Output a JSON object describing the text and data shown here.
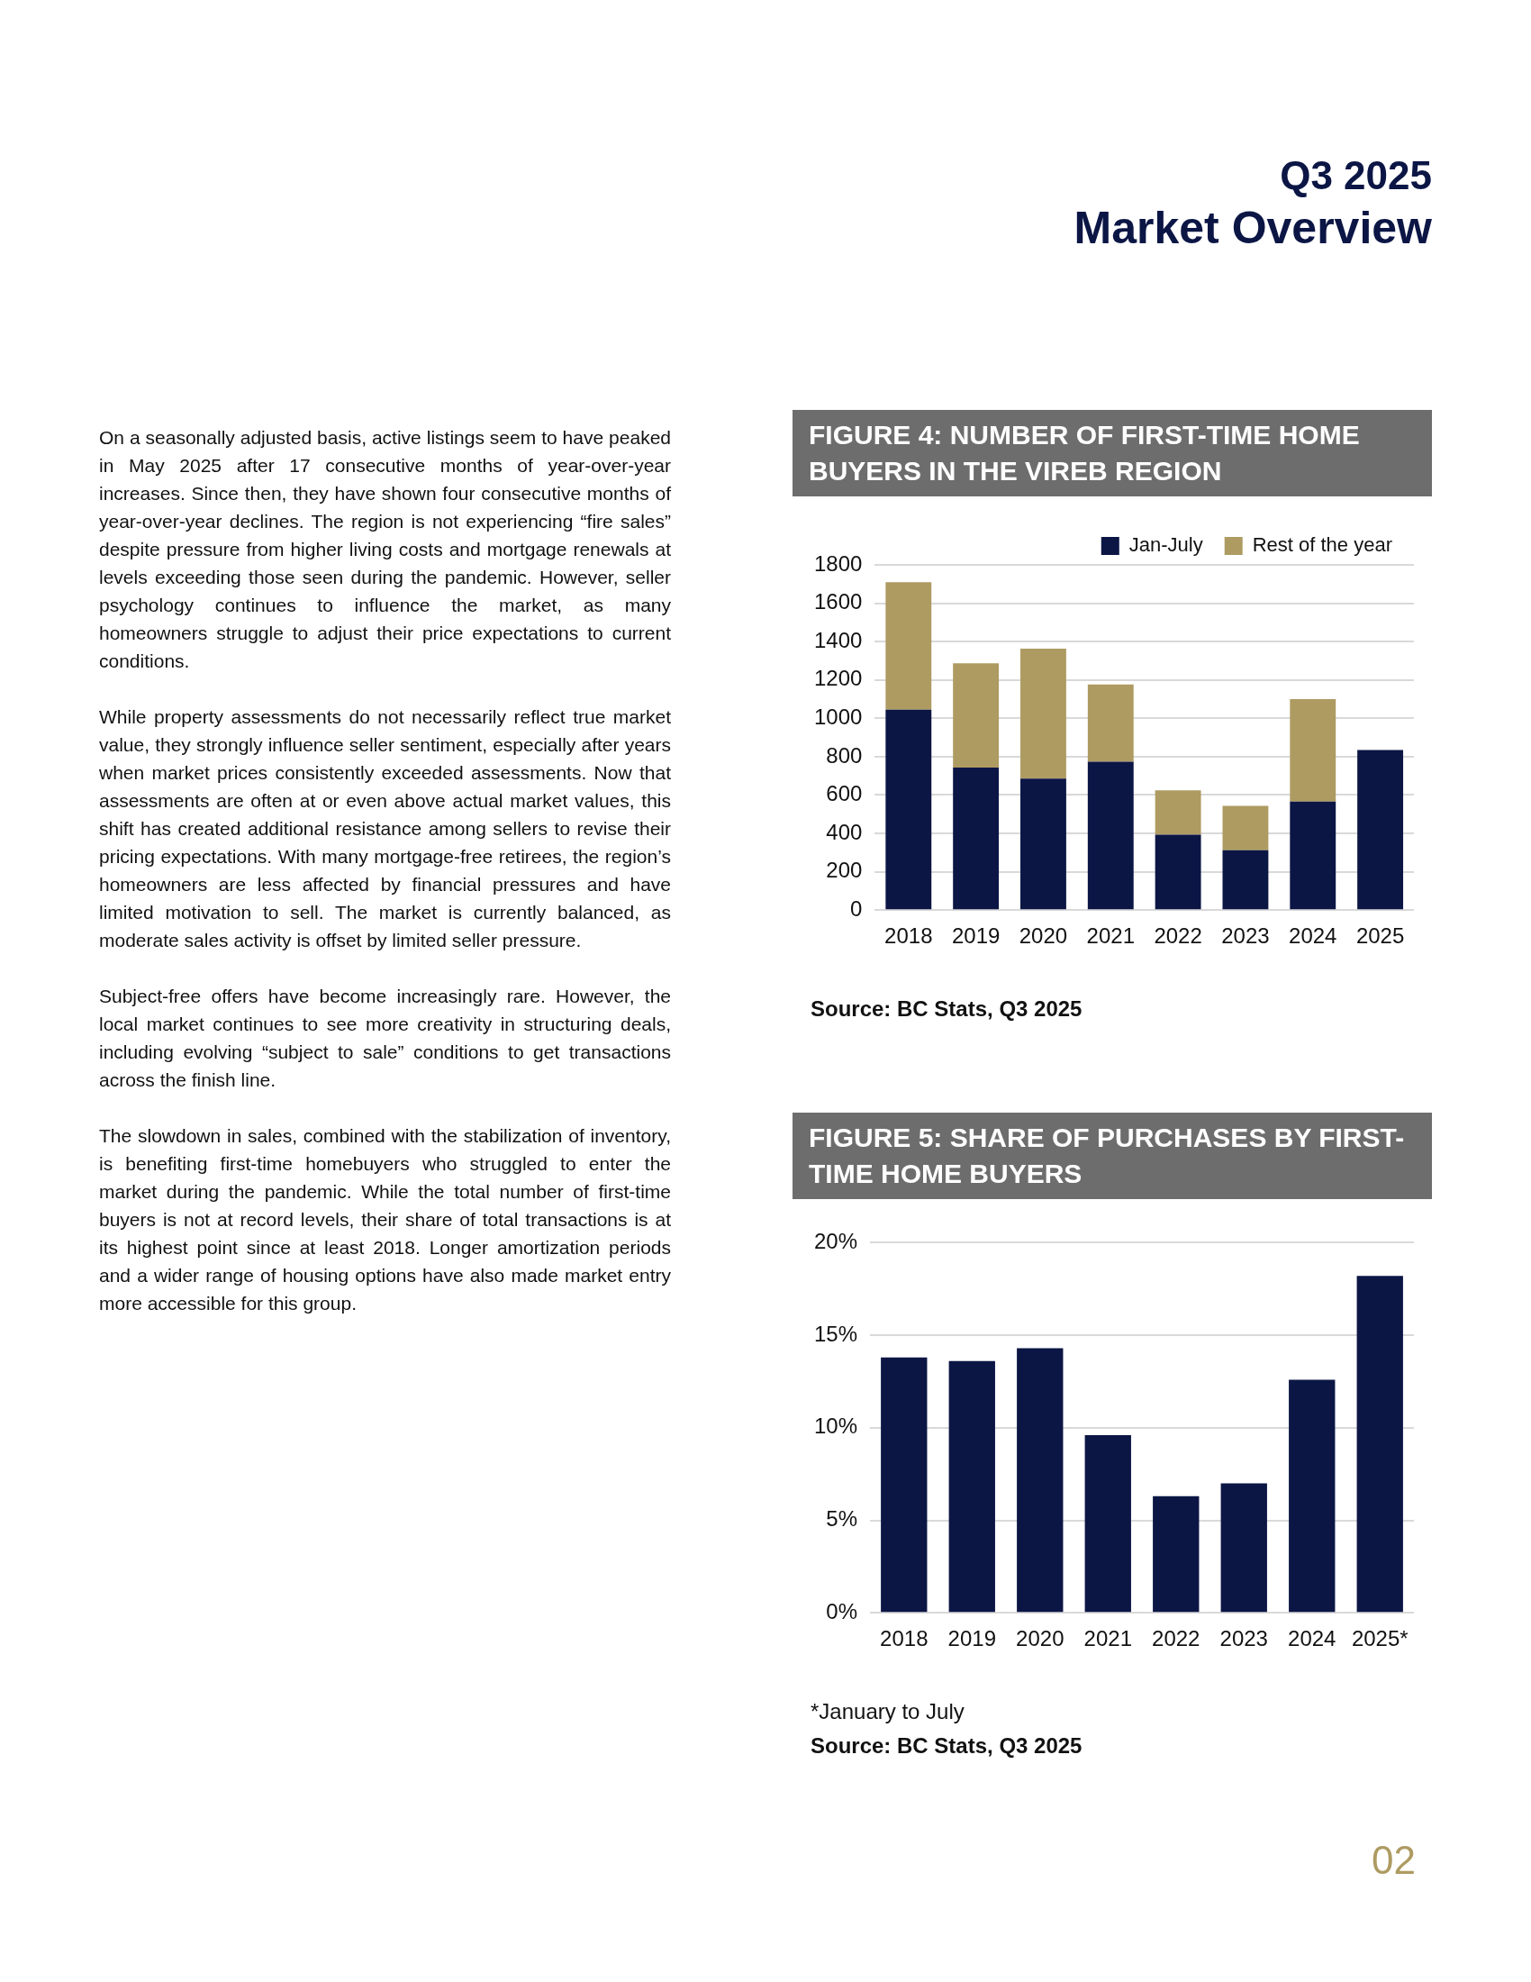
{
  "chart_data": [
    {
      "type": "other",
      "title": "Q3 2025",
      "subtitle": "Market Overview",
      "annotations": [
        "On a seasonally adjusted basis, active listings seem to have peaked in May 2025 after 17 consecutive months of year-over-year increases. Since then, they have shown four consecutive months of year-over-year declines. The region is not experiencing “fire sales” despite pressure from higher living costs and mortgage renewals at levels exceeding those seen during the pandemic. However, seller psychology continues to influence the market, as many homeowners struggle to adjust their price expectations to current conditions.",
        "While property assessments do not necessarily reflect true market value, they strongly influence seller sentiment, especially after years when market prices consistently exceeded assessments. Now that assessments are often at or even above actual market values, this shift has created additional resistance among sellers to revise their pricing expectations. With many mortgage-free retirees, the region’s homeowners are less affected by financial pressures and have limited motivation to sell. The market is currently balanced, as moderate sales activity is offset by limited seller pressure.",
        "Subject-free offers have become increasingly rare. However, the local market continues to see more creativity in structuring deals, including evolving “subject to sale” conditions to get transactions across the finish line.",
        "The slowdown in sales, combined with the stabilization of inventory, is benefiting first-time homebuyers who struggled to enter the market during the pandemic. While the total number of first-time buyers is not at record levels, their share of total transactions is at its highest point since at least 2018. Longer amortization periods and a wider range of housing options have also made market entry more accessible for this group.",
        "02"
      ]
    },
    {
      "type": "bar",
      "title": "FIGURE 4: NUMBER OF FIRST-TIME HOME BUYERS IN THE VIREB REGION",
      "categories": [
        "2018",
        "2019",
        "2020",
        "2021",
        "2022",
        "2023",
        "2024",
        "2025"
      ],
      "stacked": true,
      "series": [
        {
          "name": "Jan-July",
          "color": "#0b1645",
          "values": [
            1045,
            743,
            686,
            774,
            393,
            312,
            566,
            835
          ]
        },
        {
          "name": "Rest of the year",
          "color": "#ae9b62",
          "values": [
            664,
            544,
            677,
            403,
            232,
            232,
            534,
            null
          ]
        }
      ],
      "ylim": [
        0,
        1800
      ],
      "yticks": [
        0,
        200,
        400,
        600,
        800,
        1000,
        1200,
        1400,
        1600,
        1800
      ],
      "grid": "y",
      "legend": "top right",
      "annotations": [
        "Source: BC Stats, Q3 2025"
      ]
    },
    {
      "type": "bar",
      "title": "FIGURE 5: SHARE OF PURCHASES BY FIRST-TIME HOME BUYERS",
      "categories": [
        "2018",
        "2019",
        "2020",
        "2021",
        "2022",
        "2023",
        "2024",
        "2025*"
      ],
      "values": [
        13.8,
        13.6,
        14.3,
        9.6,
        6.3,
        7.0,
        12.6,
        18.2
      ],
      "color": "#0b1645",
      "ylim": [
        0,
        20
      ],
      "yticks": [
        {
          "value": 0,
          "label": "0%"
        },
        {
          "value": 5,
          "label": "5%"
        },
        {
          "value": 10,
          "label": "10%"
        },
        {
          "value": 15,
          "label": "15%"
        },
        {
          "value": 20,
          "label": "20%"
        }
      ],
      "grid": "y",
      "annotations": [
        "*January to July",
        "Source: BC Stats, Q3 2025"
      ]
    }
  ]
}
